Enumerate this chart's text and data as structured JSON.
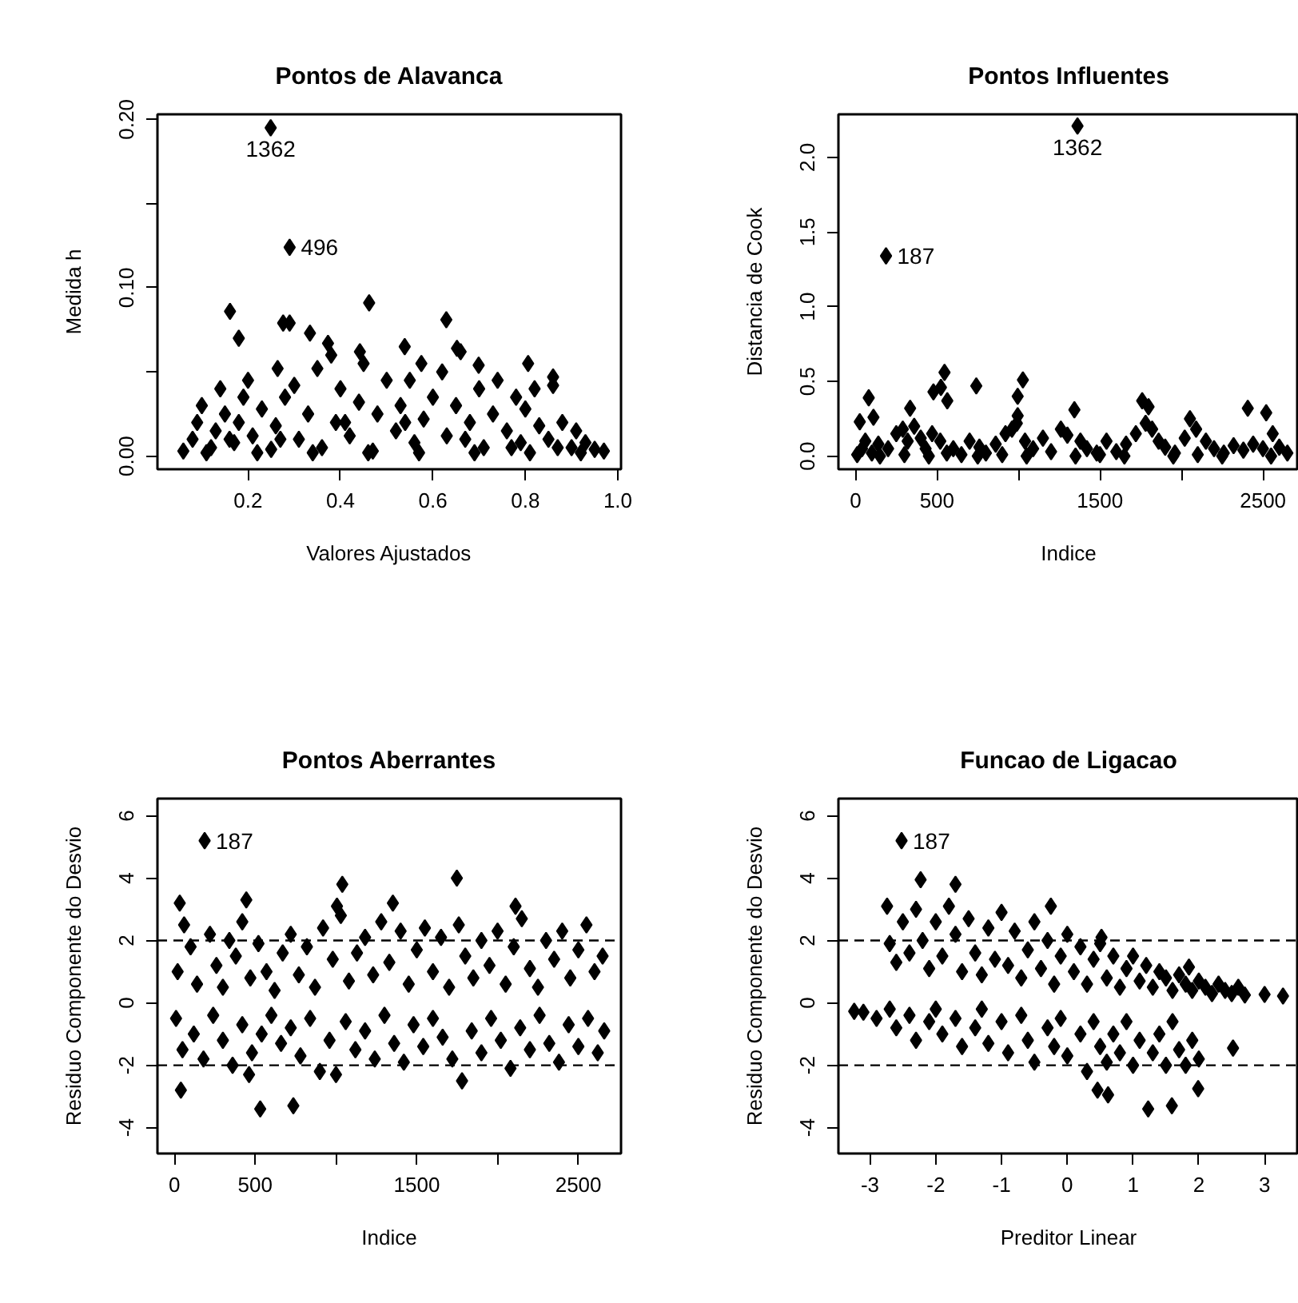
{
  "chart_data": [
    {
      "type": "scatter",
      "title": "Pontos de Alavanca",
      "xlabel": "Valores Ajustados",
      "ylabel": "Medida h",
      "marker": "diamond",
      "grid": false,
      "xlim": [
        0.004,
        1.007
      ],
      "ylim": [
        -0.0078,
        0.203
      ],
      "xticks": [
        0.2,
        0.4,
        0.6,
        0.8,
        {
          "value": 1.0,
          "label": "1.0"
        }
      ],
      "yticks": [
        {
          "value": 0.0,
          "label": "0.00"
        },
        {
          "value": 0.05,
          "label": null
        },
        {
          "value": 0.1,
          "label": "0.10"
        },
        {
          "value": 0.15,
          "label": null
        },
        {
          "value": 0.2,
          "label": "0.20"
        }
      ],
      "series": [
        {
          "color": "#000000",
          "x": [
            0.249,
            0.29,
            0.161,
            0.462,
            0.629,
            0.276,
            0.29,
            0.18,
            0.334,
            0.373,
            0.442,
            0.539,
            0.652,
            0.575,
            0.806,
            0.86,
            0.264,
            0.699,
            0.06,
            0.08,
            0.09,
            0.1,
            0.12,
            0.13,
            0.14,
            0.15,
            0.17,
            0.18,
            0.19,
            0.2,
            0.21,
            0.23,
            0.25,
            0.26,
            0.28,
            0.3,
            0.31,
            0.33,
            0.35,
            0.36,
            0.38,
            0.39,
            0.4,
            0.42,
            0.44,
            0.45,
            0.47,
            0.48,
            0.5,
            0.52,
            0.53,
            0.55,
            0.56,
            0.58,
            0.6,
            0.62,
            0.63,
            0.65,
            0.66,
            0.68,
            0.7,
            0.71,
            0.73,
            0.74,
            0.76,
            0.78,
            0.79,
            0.8,
            0.82,
            0.83,
            0.85,
            0.86,
            0.88,
            0.9,
            0.91,
            0.93,
            0.95,
            0.97,
            0.11,
            0.22,
            0.34,
            0.46,
            0.57,
            0.69,
            0.81,
            0.92,
            0.16,
            0.27,
            0.41,
            0.54,
            0.67,
            0.77,
            0.87
          ],
          "values": [
            0.195,
            0.124,
            0.086,
            0.091,
            0.081,
            0.079,
            0.079,
            0.07,
            0.073,
            0.067,
            0.062,
            0.065,
            0.064,
            0.055,
            0.055,
            0.047,
            0.052,
            0.054,
            0.003,
            0.01,
            0.02,
            0.03,
            0.005,
            0.015,
            0.04,
            0.025,
            0.008,
            0.02,
            0.035,
            0.045,
            0.012,
            0.028,
            0.004,
            0.018,
            0.035,
            0.042,
            0.01,
            0.025,
            0.052,
            0.005,
            0.06,
            0.02,
            0.04,
            0.012,
            0.032,
            0.055,
            0.003,
            0.025,
            0.045,
            0.015,
            0.03,
            0.045,
            0.008,
            0.022,
            0.035,
            0.05,
            0.012,
            0.03,
            0.062,
            0.02,
            0.04,
            0.005,
            0.025,
            0.045,
            0.015,
            0.035,
            0.008,
            0.028,
            0.04,
            0.018,
            0.01,
            0.042,
            0.02,
            0.005,
            0.015,
            0.008,
            0.004,
            0.003,
            0.002,
            0.002,
            0.002,
            0.002,
            0.002,
            0.002,
            0.002,
            0.002,
            0.01,
            0.01,
            0.02,
            0.02,
            0.01,
            0.005,
            0.005
          ]
        }
      ],
      "annotations": [
        {
          "text": "1362",
          "x": 0.249,
          "y": 0.195
        },
        {
          "text": "496",
          "x": 0.29,
          "y": 0.124
        }
      ]
    },
    {
      "type": "scatter",
      "title": "Pontos Influentes",
      "xlabel": "Indice",
      "ylabel": "Distancia de Cook",
      "marker": "diamond",
      "grid": false,
      "xlim": [
        -105,
        2720
      ],
      "ylim": [
        -0.088,
        2.288
      ],
      "xticks": [
        0,
        500,
        {
          "value": 1000,
          "label": null
        },
        1500,
        {
          "value": 2000,
          "label": null
        },
        2500
      ],
      "yticks": [
        {
          "value": 0.0,
          "label": "0.0"
        },
        0.5,
        {
          "value": 1.0,
          "label": "1.0"
        },
        1.5,
        {
          "value": 2.0,
          "label": "2.0"
        }
      ],
      "series": [
        {
          "color": "#000000",
          "x": [
            1362,
            187,
            81,
            26,
            110,
            335,
            478,
            546,
            524,
            563,
            741,
            1027,
            995,
            995,
            1343,
            1759,
            1798,
            2052,
            2407,
            2520,
            10,
            40,
            60,
            100,
            140,
            200,
            250,
            290,
            320,
            360,
            400,
            430,
            470,
            520,
            560,
            600,
            650,
            700,
            760,
            800,
            860,
            920,
            960,
            990,
            1040,
            1090,
            1150,
            1200,
            1260,
            1300,
            1380,
            1420,
            1480,
            1540,
            1600,
            1660,
            1720,
            1780,
            1820,
            1860,
            1900,
            1960,
            2020,
            2090,
            2150,
            2200,
            2260,
            2320,
            2380,
            2440,
            2500,
            2560,
            2600,
            2650,
            150,
            450,
            750,
            1050,
            1350,
            1650,
            1950,
            2250,
            2550,
            300,
            900,
            1500,
            2100
          ],
          "values": [
            2.21,
            1.34,
            0.39,
            0.23,
            0.26,
            0.32,
            0.43,
            0.56,
            0.46,
            0.37,
            0.47,
            0.51,
            0.4,
            0.27,
            0.31,
            0.37,
            0.33,
            0.25,
            0.32,
            0.29,
            0.01,
            0.05,
            0.1,
            0.02,
            0.08,
            0.05,
            0.15,
            0.18,
            0.1,
            0.2,
            0.12,
            0.05,
            0.15,
            0.1,
            0.02,
            0.05,
            0.01,
            0.1,
            0.06,
            0.02,
            0.08,
            0.15,
            0.18,
            0.22,
            0.1,
            0.05,
            0.12,
            0.03,
            0.18,
            0.14,
            0.1,
            0.05,
            0.02,
            0.1,
            0.03,
            0.08,
            0.15,
            0.22,
            0.18,
            0.1,
            0.06,
            0.02,
            0.12,
            0.18,
            0.1,
            0.05,
            0.02,
            0.07,
            0.04,
            0.08,
            0.05,
            0.15,
            0.06,
            0.02,
            0.0,
            0.0,
            0.0,
            0.0,
            0.0,
            0.0,
            0.0,
            0.0,
            0.0,
            0.01,
            0.01,
            0.01,
            0.01
          ]
        }
      ],
      "annotations": [
        {
          "text": "1362",
          "x": 1362,
          "y": 2.21
        },
        {
          "text": "187",
          "x": 187,
          "y": 1.34
        }
      ]
    },
    {
      "type": "scatter",
      "title": "Pontos Aberrantes",
      "xlabel": "Indice",
      "ylabel": "Residuo Componente do Desvio",
      "marker": "diamond",
      "grid": false,
      "xlim": [
        -105,
        2764
      ],
      "ylim": [
        -4.83,
        6.55
      ],
      "xticks": [
        0,
        500,
        {
          "value": 1000,
          "label": null
        },
        1500,
        {
          "value": 2000,
          "label": null
        },
        2500
      ],
      "yticks": [
        -4,
        -2,
        0,
        2,
        4,
        6
      ],
      "ref_lines": [
        {
          "axis": "y",
          "value": 2,
          "color": "#000000",
          "line_style": "dashed"
        },
        {
          "axis": "y",
          "value": -2,
          "color": "#000000",
          "line_style": "dashed"
        }
      ],
      "series": [
        {
          "color": "#000000",
          "x": [
            187,
            40,
            531,
            736,
            462,
            1748,
            1039,
            445,
            33,
            1006,
            2111,
            1352,
            20,
            60,
            100,
            140,
            220,
            260,
            300,
            340,
            380,
            420,
            470,
            520,
            570,
            620,
            670,
            720,
            770,
            820,
            870,
            920,
            980,
            1030,
            1080,
            1130,
            1180,
            1230,
            1280,
            1330,
            1400,
            1450,
            1500,
            1550,
            1600,
            1650,
            1700,
            1760,
            1800,
            1850,
            1900,
            1950,
            2000,
            2050,
            2100,
            2150,
            2200,
            2250,
            2300,
            2350,
            2400,
            2450,
            2500,
            2550,
            2600,
            2650,
            10,
            50,
            120,
            180,
            240,
            300,
            360,
            420,
            480,
            540,
            600,
            660,
            720,
            780,
            840,
            900,
            960,
            1000,
            1060,
            1120,
            1180,
            1240,
            1300,
            1360,
            1420,
            1480,
            1540,
            1600,
            1660,
            1720,
            1780,
            1840,
            1900,
            1960,
            2020,
            2080,
            2140,
            2200,
            2260,
            2320,
            2380,
            2440,
            2500,
            2560,
            2620,
            2660
          ],
          "values": [
            5.2,
            -2.8,
            -3.4,
            -3.3,
            -2.3,
            4.0,
            3.8,
            3.3,
            3.2,
            3.1,
            3.1,
            3.2,
            1.0,
            2.5,
            1.8,
            0.6,
            2.2,
            1.2,
            0.5,
            2.0,
            1.5,
            2.6,
            0.8,
            1.9,
            1.0,
            0.4,
            1.6,
            2.2,
            0.9,
            1.8,
            0.5,
            2.4,
            1.4,
            2.8,
            0.7,
            1.6,
            2.1,
            0.9,
            2.6,
            1.3,
            2.3,
            0.6,
            1.7,
            2.4,
            1.0,
            2.1,
            0.5,
            2.5,
            1.5,
            0.8,
            2.0,
            1.2,
            2.3,
            0.6,
            1.8,
            2.7,
            1.1,
            0.5,
            2.0,
            1.4,
            2.3,
            0.8,
            1.7,
            2.5,
            1.0,
            1.5,
            -0.5,
            -1.5,
            -1.0,
            -1.8,
            -0.4,
            -1.2,
            -2.0,
            -0.7,
            -1.6,
            -1.0,
            -0.4,
            -1.3,
            -0.8,
            -1.7,
            -0.5,
            -2.2,
            -1.2,
            -2.3,
            -0.6,
            -1.5,
            -0.9,
            -1.8,
            -0.4,
            -1.3,
            -1.9,
            -0.7,
            -1.4,
            -0.5,
            -1.1,
            -1.8,
            -2.5,
            -0.9,
            -1.6,
            -0.5,
            -1.2,
            -2.1,
            -0.8,
            -1.5,
            -0.4,
            -1.3,
            -1.9,
            -0.7,
            -1.4,
            -0.5,
            -1.6,
            -0.9
          ]
        }
      ],
      "annotations": [
        {
          "text": "187",
          "x": 187,
          "y": 5.2
        }
      ]
    },
    {
      "type": "scatter",
      "title": "Funcao de Ligacao",
      "xlabel": "Preditor Linear",
      "ylabel": "Residuo Componente do Desvio",
      "marker": "diamond",
      "grid": false,
      "xlim": [
        -3.48,
        3.52
      ],
      "ylim": [
        -4.83,
        6.55
      ],
      "xticks": [
        -3,
        -2,
        -1,
        0,
        1,
        2,
        3
      ],
      "yticks": [
        -4,
        -2,
        0,
        2,
        4,
        6
      ],
      "ref_lines": [
        {
          "axis": "y",
          "value": 2,
          "color": "#000000",
          "line_style": "dashed"
        },
        {
          "axis": "y",
          "value": -2,
          "color": "#000000",
          "line_style": "dashed"
        }
      ],
      "series": [
        {
          "color": "#000000",
          "x": [
            -2.52,
            -2.23,
            -1.7,
            -2.74,
            -0.25,
            2.52,
            1.23,
            1.59,
            1.99,
            0.62,
            0.46,
            3.28,
            3.0,
            2.7,
            -3.24,
            0.52,
            1.85,
            -2.7,
            -2.6,
            -2.5,
            -2.4,
            -2.3,
            -2.2,
            -2.1,
            -2.0,
            -1.9,
            -1.8,
            -1.7,
            -1.6,
            -1.5,
            -1.4,
            -1.3,
            -1.2,
            -1.1,
            -1.0,
            -0.9,
            -0.8,
            -0.7,
            -0.6,
            -0.5,
            -0.4,
            -0.3,
            -0.2,
            -0.1,
            0.0,
            0.1,
            0.2,
            0.3,
            0.4,
            0.5,
            0.6,
            0.7,
            0.8,
            0.9,
            1.0,
            1.1,
            1.2,
            1.3,
            1.4,
            1.5,
            1.6,
            1.7,
            1.8,
            1.9,
            2.0,
            2.1,
            2.2,
            2.3,
            2.4,
            2.5,
            2.6,
            -3.1,
            -2.9,
            -2.7,
            -2.6,
            -2.4,
            -2.3,
            -2.1,
            -2.0,
            -1.9,
            -1.7,
            -1.6,
            -1.4,
            -1.3,
            -1.2,
            -1.0,
            -0.9,
            -0.7,
            -0.6,
            -0.5,
            -0.3,
            -0.2,
            -0.1,
            0.0,
            0.2,
            0.3,
            0.4,
            0.5,
            0.6,
            0.7,
            0.8,
            0.9,
            1.0,
            1.1,
            1.3,
            1.4,
            1.5,
            1.6,
            1.7,
            1.8,
            1.9,
            2.0
          ],
          "values": [
            5.2,
            3.95,
            3.8,
            3.1,
            3.1,
            -1.45,
            -3.4,
            -3.3,
            -2.75,
            -2.95,
            -2.8,
            0.22,
            0.27,
            0.25,
            -0.27,
            2.1,
            1.15,
            1.9,
            1.3,
            2.6,
            1.6,
            3.0,
            2.0,
            1.1,
            2.6,
            1.5,
            3.1,
            2.2,
            1.0,
            2.7,
            1.6,
            0.9,
            2.4,
            1.4,
            2.9,
            1.2,
            2.3,
            0.8,
            1.7,
            2.6,
            1.1,
            2.0,
            0.6,
            1.5,
            2.2,
            1.0,
            1.8,
            0.6,
            1.4,
            1.9,
            0.8,
            1.5,
            0.5,
            1.1,
            1.5,
            0.7,
            1.2,
            0.5,
            1.0,
            0.8,
            0.4,
            0.9,
            0.6,
            0.4,
            0.7,
            0.5,
            0.3,
            0.6,
            0.4,
            0.3,
            0.5,
            -0.3,
            -0.5,
            -0.2,
            -0.8,
            -0.4,
            -1.2,
            -0.6,
            -0.2,
            -1.0,
            -0.5,
            -1.4,
            -0.8,
            -0.2,
            -1.3,
            -0.6,
            -1.6,
            -0.4,
            -1.2,
            -1.9,
            -0.8,
            -1.4,
            -0.5,
            -1.7,
            -1.0,
            -2.2,
            -0.6,
            -1.4,
            -1.9,
            -1.0,
            -1.6,
            -0.6,
            -2.0,
            -1.2,
            -1.6,
            -1.0,
            -2.0,
            -0.6,
            -1.5,
            -2.0,
            -1.2,
            -1.8
          ]
        }
      ],
      "annotations": [
        {
          "text": "187",
          "x": -2.52,
          "y": 5.2
        }
      ]
    }
  ]
}
